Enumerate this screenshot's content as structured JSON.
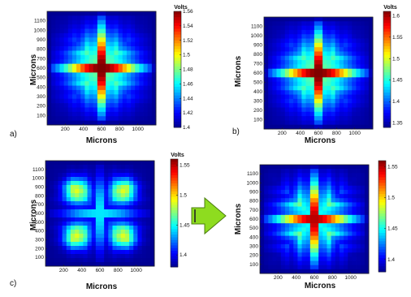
{
  "colors": {
    "colormap": [
      "#00008f",
      "#0000ff",
      "#0080ff",
      "#00ffff",
      "#80ff80",
      "#ffff00",
      "#ff8000",
      "#ff0000",
      "#800000"
    ],
    "arrow_fill": "#8edc1f",
    "arrow_stroke": "#4c7d10",
    "frame": "#222222"
  },
  "icons": {
    "arrow": "right-arrow-icon"
  },
  "chart_data": [
    {
      "type": "heatmap",
      "letter": "a)",
      "pattern": "interdigitated-cross",
      "xlabel": "Microns",
      "ylabel": "Microns",
      "xticks": [
        "200",
        "400",
        "600",
        "800",
        "1000"
      ],
      "yticks": [
        "1100",
        "1000",
        "900",
        "800",
        "700",
        "600",
        "500",
        "400",
        "300",
        "200",
        "100"
      ],
      "xlim": [
        0,
        1200
      ],
      "ylim": [
        0,
        1200
      ],
      "colorbar": {
        "title": "Volts",
        "ticks": [
          "1.56",
          "1.54",
          "1.52",
          "1.5",
          "1.48",
          "1.46",
          "1.44",
          "1.42",
          "1.4"
        ],
        "range": [
          1.4,
          1.56
        ]
      }
    },
    {
      "type": "heatmap",
      "letter": "b)",
      "pattern": "interdigitated-cross",
      "xlabel": "Microns",
      "ylabel": "Microns",
      "xticks": [
        "200",
        "400",
        "600",
        "800",
        "1000"
      ],
      "yticks": [
        "1100",
        "1000",
        "900",
        "800",
        "700",
        "600",
        "500",
        "400",
        "300",
        "200",
        "100"
      ],
      "xlim": [
        0,
        1200
      ],
      "ylim": [
        0,
        1200
      ],
      "colorbar": {
        "title": "Volts",
        "ticks": [
          "1.6",
          "1.55",
          "1.5",
          "1.45",
          "1.4",
          "1.35"
        ],
        "range": [
          1.34,
          1.61
        ]
      }
    },
    {
      "type": "heatmap",
      "letter": "c)",
      "pattern": "interdigitated-lobes",
      "xlabel": "Microns",
      "ylabel": "Microns",
      "xticks": [
        "200",
        "400",
        "600",
        "800",
        "1000"
      ],
      "yticks": [
        "1100",
        "1000",
        "900",
        "800",
        "700",
        "600",
        "500",
        "400",
        "300",
        "200",
        "100"
      ],
      "xlim": [
        0,
        1200
      ],
      "ylim": [
        0,
        1200
      ],
      "colorbar": {
        "title": "Volts",
        "ticks": [
          "1.55",
          "1.5",
          "1.45",
          "1.4"
        ],
        "range": [
          1.38,
          1.56
        ]
      }
    },
    {
      "type": "heatmap",
      "letter": "",
      "pattern": "interdigitated-combs",
      "xlabel": "Microns",
      "ylabel": "Microns",
      "xticks": [
        "200",
        "400",
        "600",
        "800",
        "1000"
      ],
      "yticks": [
        "1100",
        "1000",
        "900",
        "800",
        "700",
        "600",
        "500",
        "400",
        "300",
        "200",
        "100"
      ],
      "xlim": [
        0,
        1200
      ],
      "ylim": [
        0,
        1200
      ],
      "colorbar": {
        "title": "",
        "ticks": [
          "1.55",
          "1.5",
          "1.45",
          "1.4"
        ],
        "range": [
          1.38,
          1.56
        ]
      }
    }
  ]
}
